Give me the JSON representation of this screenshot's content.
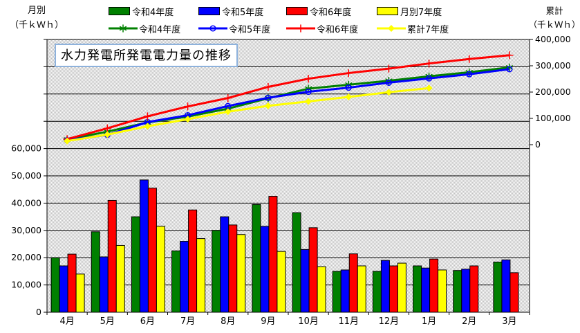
{
  "title": "水力発電所発電電力量の推移",
  "left_axis": {
    "title_line1": "月別",
    "title_line2": "（千ｋＷｈ）",
    "tick_labels": [
      "0",
      "10,000",
      "20,000",
      "30,000",
      "40,000",
      "50,000",
      "60,000"
    ],
    "axis_min": 0,
    "axis_max": 100000,
    "major_unit": 10000
  },
  "right_axis": {
    "title_line1": "累計",
    "title_line2": "（千ｋＷｈ）",
    "tick_labels": [
      "0",
      "100,000",
      "200,000",
      "300,000",
      "400,000"
    ],
    "axis_min": 0,
    "axis_max": 400000,
    "major_unit": 100000
  },
  "legend": {
    "bar_items": [
      {
        "label": "令和4年度",
        "color": "#008000"
      },
      {
        "label": "令和5年度",
        "color": "#0000ff"
      },
      {
        "label": "令和6年度",
        "color": "#ff0000"
      },
      {
        "label": "月別7年度",
        "color": "#ffff00"
      }
    ],
    "line_items": [
      {
        "label": "令和4年度",
        "color": "#008000",
        "marker": "asterisk"
      },
      {
        "label": "令和5年度",
        "color": "#0000ff",
        "marker": "circle"
      },
      {
        "label": "令和6年度",
        "color": "#ff0000",
        "marker": "plus"
      },
      {
        "label": "累計7年度",
        "color": "#ffff00",
        "marker": "diamond"
      }
    ]
  },
  "colors": {
    "green": "#008000",
    "blue": "#0000ff",
    "red": "#ff0000",
    "yellow": "#ffff00",
    "grid": "#000000",
    "plot_dither_gray": "#c0c0c0",
    "plot_dither_white": "#ffffff",
    "title_box_border": "#8eb2dc"
  },
  "chart_data": {
    "type": "combo-bar-line",
    "title": "水力発電所発電電力量の推移",
    "categories": [
      "4月",
      "5月",
      "6月",
      "7月",
      "8月",
      "9月",
      "10月",
      "11月",
      "12月",
      "1月",
      "2月",
      "3月"
    ],
    "grid": true,
    "legend_position": "top",
    "bar_axis": "left",
    "line_axis": "right",
    "left_ylim": [
      0,
      100000
    ],
    "left_labeled_max": 60000,
    "right_ylim": [
      0,
      400000
    ],
    "bar_series": [
      {
        "name": "令和4年度",
        "color": "#008000",
        "values": [
          20000,
          29500,
          35000,
          22500,
          30000,
          39500,
          36500,
          15000,
          15000,
          17000,
          15300,
          18400
        ]
      },
      {
        "name": "令和5年度",
        "color": "#0000ff",
        "values": [
          17000,
          20300,
          48500,
          26000,
          35000,
          31500,
          23000,
          15500,
          19000,
          16200,
          15800,
          19200
        ]
      },
      {
        "name": "令和6年度",
        "color": "#ff0000",
        "values": [
          21300,
          41000,
          45500,
          37500,
          32000,
          42500,
          31000,
          21400,
          17000,
          19500,
          17000,
          14500
        ]
      },
      {
        "name": "月別7年度",
        "color": "#ffff00",
        "values": [
          14000,
          24500,
          31500,
          27000,
          28500,
          22300,
          16700,
          17000,
          18000,
          15500,
          null,
          null
        ]
      }
    ],
    "line_series": [
      {
        "name": "令和4年度",
        "color": "#008000",
        "marker": "asterisk",
        "values": [
          20000,
          49500,
          84500,
          107000,
          137000,
          176500,
          213000,
          228000,
          243000,
          260000,
          275300,
          293700
        ]
      },
      {
        "name": "令和5年度",
        "color": "#0000ff",
        "marker": "circle",
        "values": [
          17000,
          37300,
          85800,
          111800,
          146800,
          178300,
          201300,
          216800,
          235800,
          252000,
          267800,
          287000
        ]
      },
      {
        "name": "令和6年度",
        "color": "#ff0000",
        "marker": "plus",
        "values": [
          21300,
          62300,
          107800,
          145300,
          177300,
          219800,
          250800,
          272200,
          289200,
          308700,
          325700,
          340200
        ]
      },
      {
        "name": "累計7年度",
        "color": "#ffff00",
        "marker": "diamond",
        "values": [
          14000,
          38500,
          70000,
          97000,
          125500,
          147800,
          164500,
          181500,
          199500,
          215000,
          null,
          null
        ]
      }
    ]
  }
}
